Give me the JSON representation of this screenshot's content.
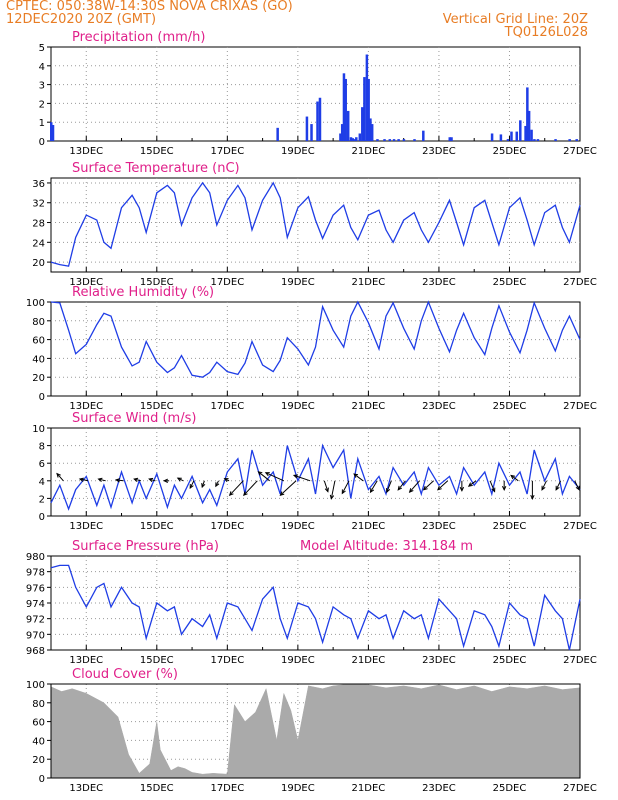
{
  "header": {
    "line1_left": "CPTEC:   050:38W-14:30S   NOVA CRIXAS (GO)",
    "line2_left": "12DEC2020 20Z (GMT)",
    "line1_right": "Vertical Grid Line: 20Z",
    "line2_right": "TQ0126L028"
  },
  "colors": {
    "header": "#e87d25",
    "title": "#e0208a",
    "series": "#1f3de6",
    "cloud": "#aaaaaa",
    "grid": "#9a9a9a"
  },
  "x_axis": {
    "labels": [
      "13DEC",
      "15DEC",
      "17DEC",
      "19DEC",
      "21DEC",
      "23DEC",
      "25DEC",
      "27DEC"
    ],
    "label_days": [
      1,
      3,
      5,
      7,
      9,
      11,
      13,
      15
    ],
    "range_days": [
      0.0,
      15.0
    ]
  },
  "chart_data": [
    {
      "type": "bar",
      "title": "Precipitation (mm/h)",
      "ylim": [
        0,
        5
      ],
      "yticks": [
        0,
        1,
        2,
        3,
        4,
        5
      ],
      "x_days": [
        0.0,
        0.05,
        6.42,
        7.25,
        7.38,
        7.55,
        7.62,
        8.2,
        8.25,
        8.3,
        8.35,
        8.42,
        8.5,
        8.55,
        8.6,
        8.65,
        8.75,
        8.82,
        8.88,
        8.95,
        9.0,
        9.05,
        9.1,
        9.25,
        9.45,
        9.6,
        9.72,
        9.85,
        10.0,
        10.3,
        10.55,
        11.3,
        11.35,
        12.5,
        12.75,
        12.95,
        13.05,
        13.2,
        13.3,
        13.45,
        13.5,
        13.55,
        13.62,
        13.7,
        13.8,
        14.3,
        14.7,
        14.9
      ],
      "values": [
        1.0,
        0.85,
        0.7,
        1.3,
        0.9,
        2.1,
        2.3,
        0.4,
        0.9,
        3.6,
        3.3,
        1.6,
        0.2,
        0.15,
        0.1,
        0.2,
        0.4,
        1.8,
        3.4,
        4.6,
        3.3,
        1.2,
        0.9,
        0.1,
        0.1,
        0.1,
        0.1,
        0.1,
        0.1,
        0.1,
        0.55,
        0.2,
        0.2,
        0.4,
        0.35,
        0.1,
        0.5,
        0.5,
        1.1,
        0.8,
        2.85,
        1.6,
        0.6,
        0.1,
        0.1,
        0.1,
        0.1,
        0.1
      ]
    },
    {
      "type": "line",
      "title": "Surface Temperature (nC)",
      "ylim": [
        18,
        37
      ],
      "yticks": [
        20,
        24,
        28,
        32,
        36
      ],
      "x_days": [
        0.0,
        0.25,
        0.5,
        0.7,
        1.0,
        1.3,
        1.5,
        1.7,
        2.0,
        2.3,
        2.5,
        2.7,
        3.0,
        3.3,
        3.5,
        3.7,
        4.0,
        4.3,
        4.5,
        4.7,
        5.0,
        5.3,
        5.5,
        5.7,
        6.0,
        6.3,
        6.5,
        6.7,
        7.0,
        7.3,
        7.5,
        7.7,
        8.0,
        8.3,
        8.5,
        8.7,
        9.0,
        9.3,
        9.5,
        9.7,
        10.0,
        10.3,
        10.5,
        10.7,
        11.0,
        11.3,
        11.5,
        11.7,
        12.0,
        12.3,
        12.5,
        12.7,
        13.0,
        13.3,
        13.5,
        13.7,
        14.0,
        14.3,
        14.5,
        14.7,
        15.0
      ],
      "values": [
        20.0,
        19.5,
        19.2,
        25.0,
        29.5,
        28.5,
        24.0,
        22.8,
        31.0,
        33.5,
        31.0,
        26.0,
        34.0,
        35.5,
        34.0,
        27.5,
        33.0,
        36.0,
        34.0,
        27.5,
        32.5,
        35.5,
        33.0,
        26.5,
        32.5,
        36.0,
        33.0,
        25.0,
        31.0,
        33.2,
        28.5,
        24.8,
        29.5,
        31.5,
        27.0,
        24.5,
        29.5,
        30.5,
        26.5,
        24.0,
        28.5,
        30.0,
        26.5,
        24.0,
        28.0,
        32.5,
        28.0,
        23.5,
        31.0,
        32.5,
        28.0,
        23.5,
        31.0,
        33.0,
        28.5,
        23.5,
        30.0,
        31.5,
        27.0,
        24.0,
        31.5
      ]
    },
    {
      "type": "line",
      "title": "Relative Humidity (%)",
      "ylim": [
        0,
        100
      ],
      "yticks": [
        0,
        20,
        40,
        60,
        80,
        100
      ],
      "x_days": [
        0.0,
        0.25,
        0.5,
        0.7,
        1.0,
        1.3,
        1.5,
        1.7,
        2.0,
        2.3,
        2.5,
        2.7,
        3.0,
        3.3,
        3.5,
        3.7,
        4.0,
        4.3,
        4.5,
        4.7,
        5.0,
        5.3,
        5.5,
        5.7,
        6.0,
        6.3,
        6.5,
        6.7,
        7.0,
        7.3,
        7.5,
        7.7,
        8.0,
        8.3,
        8.5,
        8.7,
        9.0,
        9.3,
        9.5,
        9.7,
        10.0,
        10.3,
        10.5,
        10.7,
        11.0,
        11.3,
        11.5,
        11.7,
        12.0,
        12.3,
        12.5,
        12.7,
        13.0,
        13.3,
        13.5,
        13.7,
        14.0,
        14.3,
        14.5,
        14.7,
        15.0
      ],
      "values": [
        100.0,
        99.0,
        70.0,
        45.0,
        55.0,
        76.0,
        88.0,
        85.0,
        52.0,
        32.0,
        36.0,
        58.0,
        36.0,
        25.0,
        30.0,
        43.0,
        22.0,
        20.0,
        25.0,
        36.0,
        26.0,
        23.0,
        35.0,
        58.0,
        33.0,
        26.0,
        38.0,
        62.0,
        50.0,
        33.0,
        52.0,
        95.0,
        70.0,
        52.0,
        85.0,
        100.0,
        78.0,
        50.0,
        85.0,
        99.0,
        72.0,
        50.0,
        80.0,
        100.0,
        72.0,
        47.0,
        70.0,
        88.0,
        62.0,
        44.0,
        72.0,
        96.0,
        68.0,
        46.0,
        70.0,
        99.0,
        72.0,
        48.0,
        70.0,
        85.0,
        60.0
      ]
    },
    {
      "type": "line",
      "title": "Surface Wind (m/s)",
      "ylim": [
        0,
        10
      ],
      "yticks": [
        0,
        2,
        4,
        6,
        8,
        10
      ],
      "x_days": [
        0.0,
        0.25,
        0.5,
        0.7,
        1.0,
        1.3,
        1.5,
        1.7,
        2.0,
        2.3,
        2.5,
        2.7,
        3.0,
        3.3,
        3.5,
        3.7,
        4.0,
        4.3,
        4.5,
        4.7,
        5.0,
        5.3,
        5.5,
        5.7,
        6.0,
        6.3,
        6.5,
        6.7,
        7.0,
        7.3,
        7.5,
        7.7,
        8.0,
        8.3,
        8.5,
        8.7,
        9.0,
        9.3,
        9.5,
        9.7,
        10.0,
        10.3,
        10.5,
        10.7,
        11.0,
        11.3,
        11.5,
        11.7,
        12.0,
        12.3,
        12.5,
        12.7,
        13.0,
        13.3,
        13.5,
        13.7,
        14.0,
        14.3,
        14.5,
        14.7,
        15.0
      ],
      "values": [
        1.5,
        3.5,
        0.8,
        3.0,
        4.5,
        1.2,
        3.5,
        1.0,
        5.0,
        1.5,
        4.0,
        2.0,
        4.8,
        1.0,
        3.5,
        2.0,
        4.5,
        1.5,
        3.0,
        1.2,
        5.0,
        6.5,
        2.5,
        7.5,
        3.5,
        5.0,
        2.5,
        8.0,
        4.0,
        6.5,
        2.5,
        8.0,
        5.5,
        7.5,
        2.0,
        6.5,
        3.0,
        4.5,
        2.5,
        5.5,
        3.5,
        5.0,
        2.5,
        5.5,
        3.5,
        4.5,
        2.5,
        5.5,
        3.5,
        5.0,
        2.5,
        6.0,
        3.5,
        5.0,
        2.5,
        7.5,
        4.0,
        6.5,
        2.5,
        4.5,
        3.0
      ],
      "vectors": {
        "x_days": [
          0.35,
          1.05,
          1.55,
          2.05,
          2.55,
          2.95,
          3.35,
          3.75,
          4.05,
          4.35,
          4.75,
          5.05,
          5.45,
          5.85,
          6.2,
          6.6,
          6.95,
          7.35,
          7.75,
          8.05,
          8.45,
          8.85,
          9.25,
          9.65,
          10.05,
          10.45,
          10.85,
          11.25,
          11.65,
          12.05,
          12.45,
          12.85,
          13.25,
          13.65,
          14.05,
          14.45,
          14.85
        ],
        "u": [
          -1.4,
          -1.8,
          -1.6,
          -1.6,
          -1.5,
          -1.3,
          -1.1,
          -1.2,
          -0.8,
          -0.5,
          -0.6,
          -1.0,
          -3.0,
          -3.0,
          -2.5,
          -4.0,
          -3.5,
          -3.6,
          0.8,
          -0.8,
          -1.5,
          -2.0,
          -1.5,
          -1.0,
          -1.6,
          -2.2,
          -2.2,
          -2.2,
          0.0,
          -1.6,
          1.0,
          0.0,
          -1.6,
          0.0,
          -1.0,
          -1.0,
          1.0
        ],
        "v": [
          1.6,
          0.4,
          0.4,
          0.2,
          0.4,
          0.4,
          0.0,
          0.6,
          -1.6,
          -1.4,
          -1.2,
          0.5,
          -3.2,
          -3.2,
          2.0,
          1.8,
          -3.2,
          1.2,
          -2.4,
          -4.0,
          -2.8,
          1.5,
          -2.5,
          -2.5,
          -2.0,
          -2.5,
          -2.0,
          -2.0,
          -2.2,
          -1.2,
          -2.4,
          -2.0,
          1.2,
          -4.0,
          -2.0,
          -2.0,
          -2.0
        ]
      }
    },
    {
      "type": "line",
      "title": "Surface Pressure (hPa)",
      "annotation": "Model Altitude: 314.184 m",
      "ylim": [
        968,
        980
      ],
      "yticks": [
        968,
        970,
        972,
        974,
        976,
        978,
        980
      ],
      "x_days": [
        0.0,
        0.25,
        0.5,
        0.7,
        1.0,
        1.3,
        1.5,
        1.7,
        2.0,
        2.3,
        2.5,
        2.7,
        3.0,
        3.3,
        3.5,
        3.7,
        4.0,
        4.3,
        4.5,
        4.7,
        5.0,
        5.3,
        5.5,
        5.7,
        6.0,
        6.3,
        6.5,
        6.7,
        7.0,
        7.3,
        7.5,
        7.7,
        8.0,
        8.3,
        8.5,
        8.7,
        9.0,
        9.3,
        9.5,
        9.7,
        10.0,
        10.3,
        10.5,
        10.7,
        11.0,
        11.3,
        11.5,
        11.7,
        12.0,
        12.3,
        12.5,
        12.7,
        13.0,
        13.3,
        13.5,
        13.7,
        14.0,
        14.3,
        14.5,
        14.7,
        15.0
      ],
      "values": [
        978.5,
        978.8,
        978.8,
        976.0,
        973.5,
        976.0,
        976.5,
        973.5,
        976.0,
        974.0,
        973.5,
        969.5,
        974.0,
        973.0,
        973.5,
        970.0,
        972.0,
        971.0,
        972.5,
        969.5,
        974.0,
        973.5,
        972.0,
        970.5,
        974.5,
        976.0,
        972.0,
        969.5,
        974.0,
        973.5,
        972.0,
        969.0,
        973.5,
        972.5,
        972.0,
        969.5,
        973.0,
        972.0,
        972.5,
        969.5,
        973.0,
        972.0,
        972.5,
        969.5,
        974.5,
        973.0,
        972.0,
        968.5,
        973.0,
        972.5,
        971.0,
        968.5,
        974.0,
        972.5,
        972.0,
        968.5,
        975.0,
        973.0,
        972.0,
        968.0,
        974.5
      ]
    },
    {
      "type": "area",
      "title": "Cloud Cover (%)",
      "ylim": [
        0,
        100
      ],
      "yticks": [
        0,
        20,
        40,
        60,
        80,
        100
      ],
      "x_days": [
        0.0,
        0.3,
        0.6,
        1.0,
        1.5,
        1.9,
        2.2,
        2.5,
        2.8,
        3.0,
        3.1,
        3.4,
        3.6,
        3.8,
        4.0,
        4.3,
        4.6,
        5.0,
        5.2,
        5.5,
        5.8,
        6.1,
        6.4,
        6.6,
        6.8,
        7.0,
        7.3,
        7.7,
        8.0,
        8.5,
        9.0,
        9.5,
        10.0,
        10.5,
        11.0,
        11.5,
        12.0,
        12.5,
        13.0,
        13.5,
        14.0,
        14.5,
        15.0
      ],
      "values": [
        97.0,
        92.0,
        95.0,
        90.0,
        80.0,
        65.0,
        25.0,
        5.0,
        15.0,
        60.0,
        30.0,
        8.0,
        12.0,
        10.0,
        6.0,
        4.0,
        5.0,
        4.0,
        78.0,
        60.0,
        70.0,
        95.0,
        40.0,
        90.0,
        72.0,
        40.0,
        98.0,
        95.0,
        98.0,
        100.0,
        99.0,
        96.0,
        98.0,
        95.0,
        99.0,
        94.0,
        98.0,
        92.0,
        97.0,
        95.0,
        98.0,
        94.0,
        96.0
      ]
    }
  ]
}
